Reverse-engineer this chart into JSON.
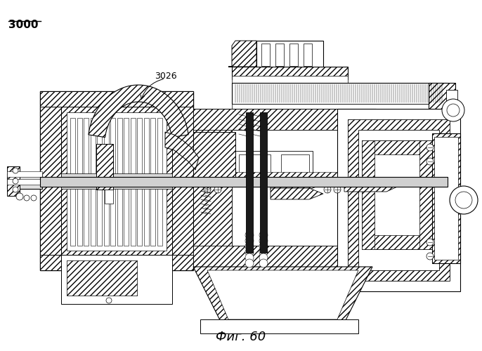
{
  "title": "Фиг. 60",
  "label_3000": "3000",
  "label_3026": "3026",
  "bg_color": "#ffffff",
  "fig_width": 6.86,
  "fig_height": 5.0,
  "dpi": 100
}
